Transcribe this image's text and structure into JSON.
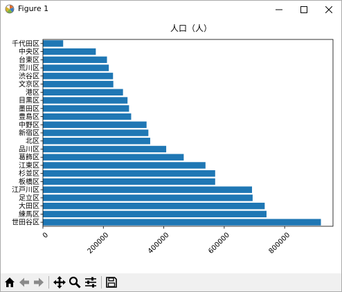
{
  "window": {
    "title": "Figure 1"
  },
  "toolbar": {
    "buttons": [
      {
        "name": "home-icon"
      },
      {
        "name": "back-arrow-icon"
      },
      {
        "name": "forward-arrow-icon"
      },
      {
        "name": "pan-icon"
      },
      {
        "name": "zoom-icon"
      },
      {
        "name": "configure-subplots-icon"
      },
      {
        "name": "save-icon"
      }
    ]
  },
  "colors": {
    "bar": "#1f77b4",
    "axis": "#000000"
  },
  "chart_data": {
    "type": "bar",
    "orientation": "horizontal",
    "title": "人口（人）",
    "categories": [
      "千代田区",
      "中央区",
      "台東区",
      "荒川区",
      "渋谷区",
      "文京区",
      "港区",
      "目黒区",
      "墨田区",
      "豊島区",
      "中野区",
      "新宿区",
      "北区",
      "品川区",
      "葛飾区",
      "江東区",
      "杉並区",
      "板橋区",
      "江戸川区",
      "足立区",
      "大田区",
      "練馬区",
      "世田谷区"
    ],
    "values": [
      67000,
      175000,
      212000,
      218000,
      232000,
      233000,
      265000,
      280000,
      285000,
      292000,
      343000,
      349000,
      355000,
      408000,
      466000,
      538000,
      570000,
      570000,
      692000,
      694000,
      734000,
      740000,
      920000
    ],
    "xlim": [
      0,
      960000
    ],
    "xticks": [
      0,
      200000,
      400000,
      600000,
      800000
    ],
    "xtick_labels": [
      "0",
      "200000",
      "400000",
      "600000",
      "800000"
    ],
    "xtick_rotation": 45,
    "grid": false,
    "legend": false
  }
}
